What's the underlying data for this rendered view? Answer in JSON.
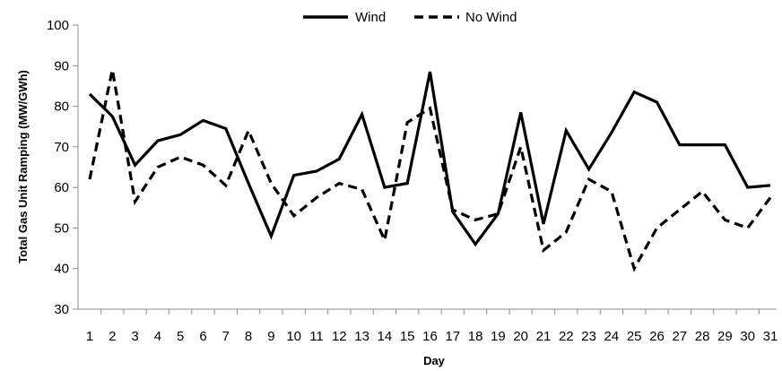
{
  "chart_data": {
    "type": "line",
    "xlabel": "Day",
    "ylabel": "Total Gas  Unit Ramping  (MW/GWh)",
    "ylim": [
      30,
      100
    ],
    "yticks": [
      30,
      40,
      50,
      60,
      70,
      80,
      90,
      100
    ],
    "categories": [
      "1",
      "2",
      "3",
      "4",
      "5",
      "6",
      "7",
      "8",
      "9",
      "10",
      "11",
      "12",
      "13",
      "14",
      "15",
      "16",
      "17",
      "18",
      "19",
      "20",
      "21",
      "22",
      "23",
      "24",
      "25",
      "26",
      "27",
      "28",
      "29",
      "30",
      "31"
    ],
    "grid": false,
    "legend": {
      "position": "top-center"
    },
    "series": [
      {
        "name": "Wind",
        "style": "solid",
        "color": "#000000",
        "values": [
          83,
          77.5,
          65.5,
          71.5,
          73,
          76.5,
          74.5,
          61,
          48,
          63,
          64,
          67,
          78,
          60,
          61,
          88.5,
          54,
          46,
          53.5,
          78.5,
          51,
          74,
          64.5,
          73.5,
          83.5,
          81,
          70.5,
          70.5,
          70.5,
          60,
          60.5
        ]
      },
      {
        "name": "No Wind",
        "style": "dashed",
        "color": "#000000",
        "values": [
          62,
          89,
          56.5,
          65,
          67.5,
          65.5,
          60.5,
          74,
          61,
          53,
          57.5,
          61,
          59.5,
          47,
          76,
          79.5,
          54.5,
          52,
          53.5,
          70,
          44.5,
          49,
          62,
          59,
          40,
          50,
          54.5,
          59,
          52,
          50,
          57.5
        ]
      }
    ]
  }
}
